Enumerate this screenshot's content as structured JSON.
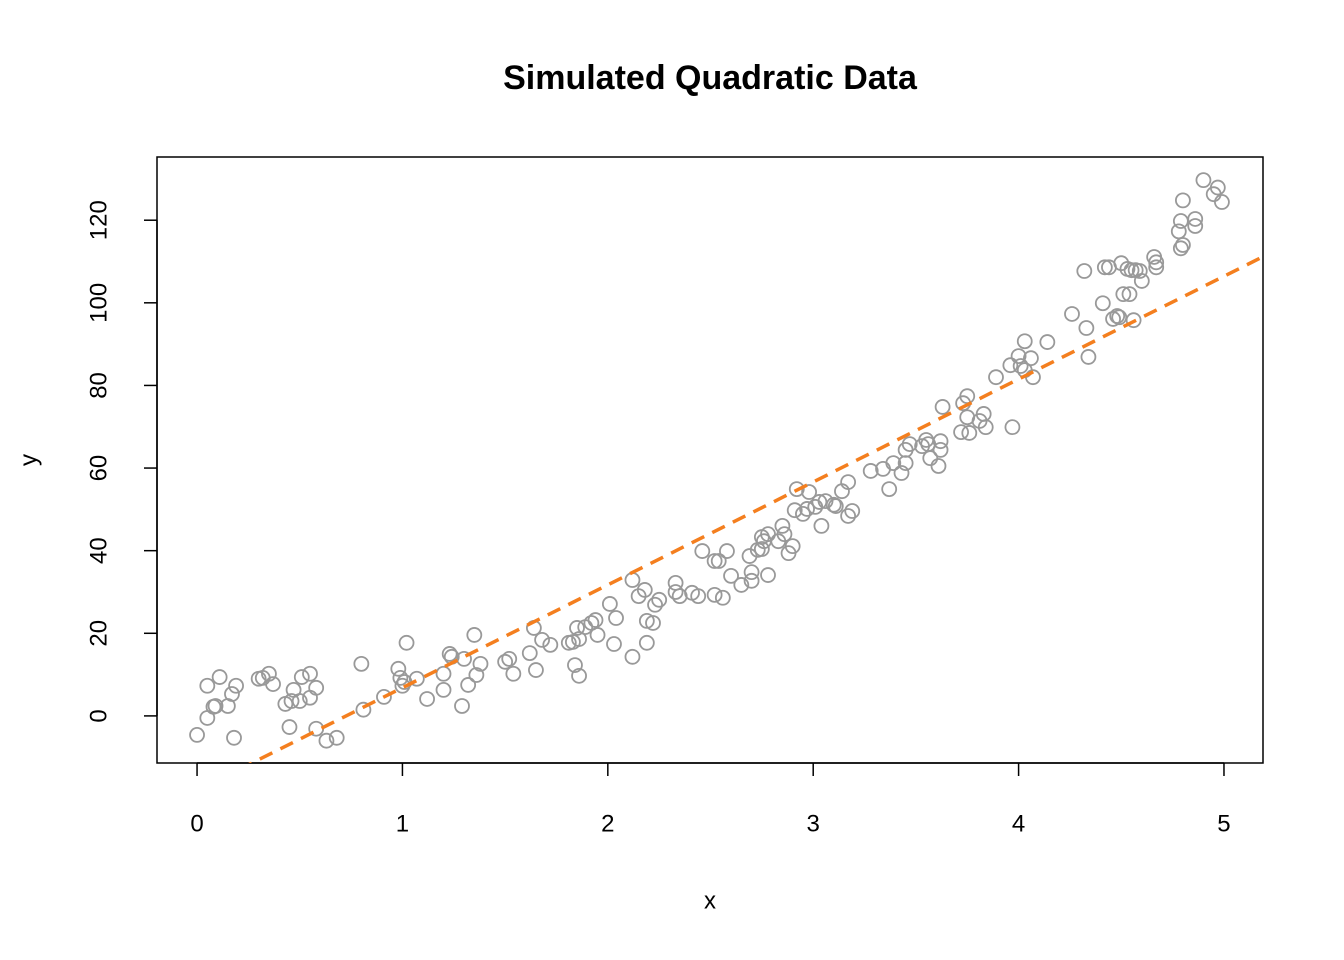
{
  "chart_data": {
    "type": "scatter",
    "title": "Simulated Quadratic Data",
    "xlabel": "x",
    "ylabel": "y",
    "color": "#999999",
    "x": [
      0.0,
      0.05,
      0.05,
      0.08,
      0.09,
      0.11,
      0.15,
      0.17,
      0.18,
      0.19,
      0.3,
      0.32,
      0.35,
      0.37,
      0.43,
      0.45,
      0.46,
      0.47,
      0.5,
      0.51,
      0.55,
      0.55,
      0.58,
      0.58,
      0.63,
      0.68,
      0.8,
      0.81,
      0.91,
      0.98,
      0.99,
      1.0,
      1.01,
      1.02,
      1.07,
      1.12,
      1.2,
      1.2,
      1.23,
      1.24,
      1.29,
      1.3,
      1.32,
      1.35,
      1.36,
      1.38,
      1.5,
      1.52,
      1.54,
      1.62,
      1.64,
      1.65,
      1.68,
      1.72,
      1.81,
      1.83,
      1.85,
      1.86,
      1.84,
      1.86,
      1.89,
      1.92,
      1.94,
      1.95,
      2.01,
      2.03,
      2.04,
      2.12,
      2.12,
      2.15,
      2.18,
      2.19,
      2.19,
      2.22,
      2.23,
      2.25,
      2.33,
      2.33,
      2.35,
      2.41,
      2.44,
      2.46,
      2.52,
      2.52,
      2.54,
      2.56,
      2.58,
      2.6,
      2.65,
      2.69,
      2.7,
      2.7,
      2.73,
      2.75,
      2.75,
      2.76,
      2.78,
      2.78,
      2.83,
      2.85,
      2.86,
      2.88,
      2.9,
      2.91,
      2.92,
      2.95,
      2.97,
      2.98,
      3.01,
      3.03,
      3.04,
      3.06,
      3.1,
      3.11,
      3.14,
      3.17,
      3.17,
      3.19,
      3.28,
      3.34,
      3.37,
      3.39,
      3.43,
      3.45,
      3.45,
      3.47,
      3.53,
      3.55,
      3.56,
      3.57,
      3.61,
      3.62,
      3.62,
      3.63,
      3.72,
      3.73,
      3.75,
      3.75,
      3.76,
      3.81,
      3.83,
      3.84,
      3.89,
      3.96,
      3.97,
      4.0,
      4.01,
      4.03,
      4.03,
      4.06,
      4.07,
      4.14,
      4.26,
      4.32,
      4.33,
      4.34,
      4.41,
      4.42,
      4.44,
      4.46,
      4.48,
      4.49,
      4.5,
      4.51,
      4.53,
      4.54,
      4.55,
      4.56,
      4.57,
      4.59,
      4.6,
      4.66,
      4.67,
      4.67,
      4.78,
      4.79,
      4.79,
      4.8,
      4.8,
      4.86,
      4.86,
      4.9,
      4.95,
      4.97,
      4.99
    ],
    "y": [
      -4.6,
      7.3,
      -0.5,
      2.2,
      2.4,
      9.4,
      2.4,
      5.3,
      -5.3,
      7.3,
      9.0,
      9.2,
      10.2,
      7.7,
      2.9,
      -2.7,
      3.6,
      6.3,
      3.6,
      9.4,
      10.2,
      4.4,
      -3.1,
      6.8,
      -6.0,
      -5.3,
      12.6,
      1.5,
      4.6,
      11.4,
      9.2,
      7.3,
      8.2,
      17.7,
      9.0,
      4.1,
      6.3,
      10.2,
      15.0,
      14.3,
      2.4,
      13.8,
      7.5,
      19.6,
      9.9,
      12.6,
      13.1,
      13.8,
      10.2,
      15.2,
      21.3,
      11.1,
      18.4,
      17.2,
      17.7,
      17.9,
      21.3,
      18.6,
      12.3,
      9.7,
      21.5,
      22.5,
      23.2,
      19.6,
      27.1,
      17.4,
      23.7,
      32.9,
      14.3,
      29.0,
      30.5,
      23.0,
      17.7,
      22.5,
      26.9,
      28.1,
      32.2,
      30.0,
      29.0,
      29.8,
      29.0,
      39.9,
      29.3,
      37.5,
      37.5,
      28.6,
      39.9,
      33.9,
      31.7,
      38.7,
      34.8,
      32.7,
      40.2,
      43.3,
      40.4,
      42.3,
      44.0,
      34.1,
      42.3,
      46.0,
      44.0,
      39.4,
      41.1,
      49.8,
      54.9,
      48.9,
      50.1,
      54.2,
      50.6,
      51.8,
      46.0,
      52.0,
      51.1,
      50.8,
      54.4,
      56.6,
      48.4,
      49.6,
      59.3,
      59.8,
      54.9,
      61.2,
      58.8,
      61.2,
      64.4,
      65.8,
      65.3,
      66.8,
      65.8,
      62.4,
      60.5,
      66.5,
      64.4,
      74.8,
      68.7,
      75.7,
      77.4,
      72.3,
      68.5,
      71.4,
      73.1,
      69.9,
      82.0,
      84.9,
      69.9,
      87.1,
      84.7,
      90.7,
      83.7,
      86.6,
      82.0,
      90.5,
      97.3,
      107.7,
      93.9,
      86.9,
      99.9,
      108.6,
      108.6,
      96.1,
      96.8,
      96.5,
      109.6,
      102.1,
      108.2,
      102.1,
      107.9,
      95.8,
      107.9,
      107.7,
      105.3,
      111.1,
      108.6,
      109.8,
      117.3,
      119.8,
      113.2,
      124.8,
      114.0,
      118.6,
      120.3,
      129.7,
      126.3,
      127.9,
      124.4
    ],
    "fit_line": {
      "intercept": -18.07,
      "slope": 24.9,
      "color": "#f47f1f",
      "dashed": true
    },
    "xlim": [
      -0.195,
      5.19
    ],
    "ylim": [
      -11.4,
      135.3
    ],
    "xticks": [
      0,
      1,
      2,
      3,
      4,
      5
    ],
    "yticks": [
      0,
      20,
      40,
      60,
      80,
      100,
      120
    ]
  }
}
